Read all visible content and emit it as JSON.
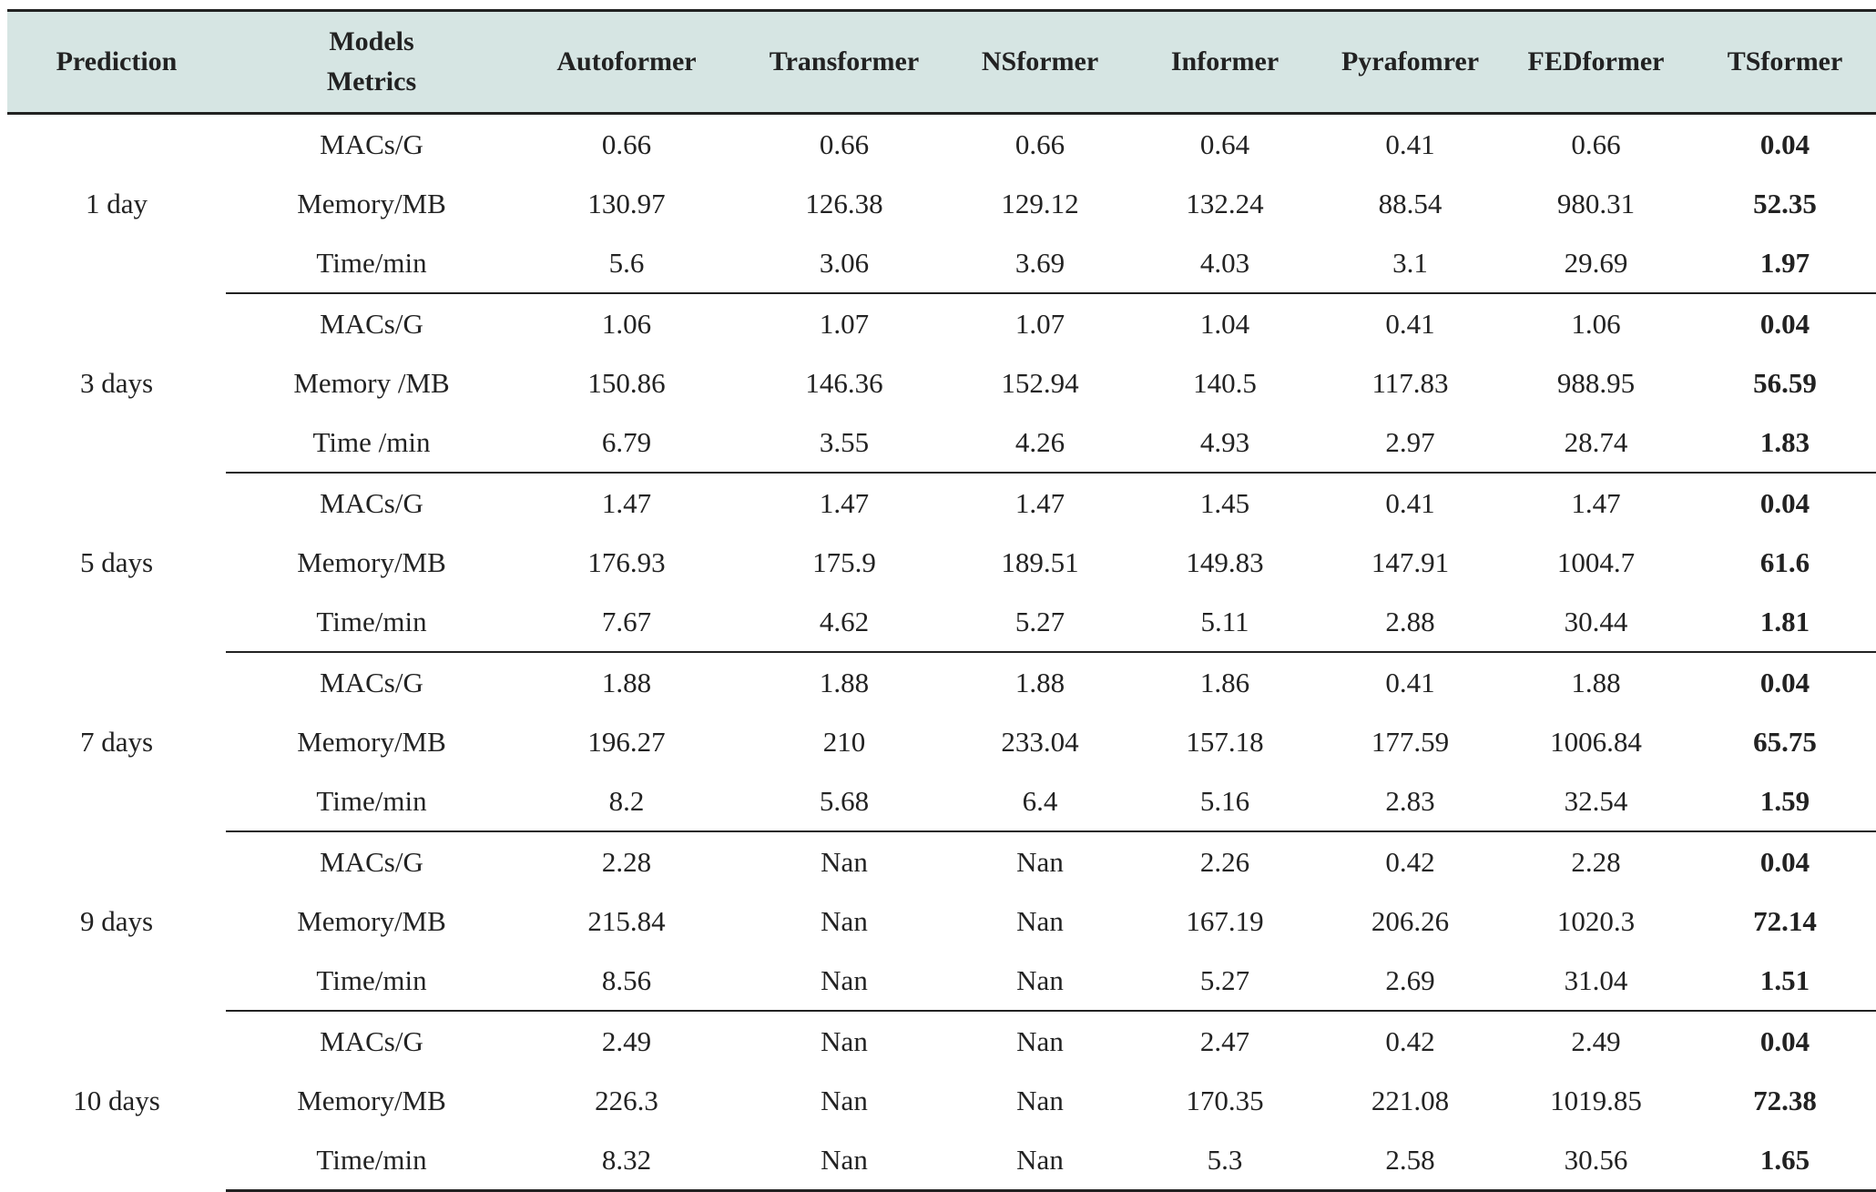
{
  "header": {
    "prediction": "Prediction",
    "models_metrics_top": "Models",
    "models_metrics_bottom": "Metrics",
    "models": [
      "Autoformer",
      "Transformer",
      "NSformer",
      "Informer",
      "Pyrafomrer",
      "FEDformer",
      "TSformer"
    ]
  },
  "groups": [
    {
      "prediction": "1 day",
      "rows": [
        {
          "metric": "MACs/G",
          "values": [
            "0.66",
            "0.66",
            "0.66",
            "0.64",
            "0.41",
            "0.66",
            "0.04"
          ]
        },
        {
          "metric": "Memory/MB",
          "values": [
            "130.97",
            "126.38",
            "129.12",
            "132.24",
            "88.54",
            "980.31",
            "52.35"
          ]
        },
        {
          "metric": "Time/min",
          "values": [
            "5.6",
            "3.06",
            "3.69",
            "4.03",
            "3.1",
            "29.69",
            "1.97"
          ]
        }
      ]
    },
    {
      "prediction": "3 days",
      "rows": [
        {
          "metric": "MACs/G",
          "values": [
            "1.06",
            "1.07",
            "1.07",
            "1.04",
            "0.41",
            "1.06",
            "0.04"
          ]
        },
        {
          "metric": "Memory /MB",
          "values": [
            "150.86",
            "146.36",
            "152.94",
            "140.5",
            "117.83",
            "988.95",
            "56.59"
          ]
        },
        {
          "metric": "Time /min",
          "values": [
            "6.79",
            "3.55",
            "4.26",
            "4.93",
            "2.97",
            "28.74",
            "1.83"
          ]
        }
      ]
    },
    {
      "prediction": "5 days",
      "rows": [
        {
          "metric": "MACs/G",
          "values": [
            "1.47",
            "1.47",
            "1.47",
            "1.45",
            "0.41",
            "1.47",
            "0.04"
          ]
        },
        {
          "metric": "Memory/MB",
          "values": [
            "176.93",
            "175.9",
            "189.51",
            "149.83",
            "147.91",
            "1004.7",
            "61.6"
          ]
        },
        {
          "metric": "Time/min",
          "values": [
            "7.67",
            "4.62",
            "5.27",
            "5.11",
            "2.88",
            "30.44",
            "1.81"
          ]
        }
      ]
    },
    {
      "prediction": "7 days",
      "rows": [
        {
          "metric": "MACs/G",
          "values": [
            "1.88",
            "1.88",
            "1.88",
            "1.86",
            "0.41",
            "1.88",
            "0.04"
          ]
        },
        {
          "metric": "Memory/MB",
          "values": [
            "196.27",
            "210",
            "233.04",
            "157.18",
            "177.59",
            "1006.84",
            "65.75"
          ]
        },
        {
          "metric": "Time/min",
          "values": [
            "8.2",
            "5.68",
            "6.4",
            "5.16",
            "2.83",
            "32.54",
            "1.59"
          ]
        }
      ]
    },
    {
      "prediction": "9 days",
      "rows": [
        {
          "metric": "MACs/G",
          "values": [
            "2.28",
            "Nan",
            "Nan",
            "2.26",
            "0.42",
            "2.28",
            "0.04"
          ]
        },
        {
          "metric": "Memory/MB",
          "values": [
            "215.84",
            "Nan",
            "Nan",
            "167.19",
            "206.26",
            "1020.3",
            "72.14"
          ]
        },
        {
          "metric": "Time/min",
          "values": [
            "8.56",
            "Nan",
            "Nan",
            "5.27",
            "2.69",
            "31.04",
            "1.51"
          ]
        }
      ]
    },
    {
      "prediction": "10 days",
      "rows": [
        {
          "metric": "MACs/G",
          "values": [
            "2.49",
            "Nan",
            "Nan",
            "2.47",
            "0.42",
            "2.49",
            "0.04"
          ]
        },
        {
          "metric": "Memory/MB",
          "values": [
            "226.3",
            "Nan",
            "Nan",
            "170.35",
            "221.08",
            "1019.85",
            "72.38"
          ]
        },
        {
          "metric": "Time/min",
          "values": [
            "8.32",
            "Nan",
            "Nan",
            "5.3",
            "2.58",
            "30.56",
            "1.65"
          ]
        }
      ]
    }
  ],
  "best_model_index": 6
}
